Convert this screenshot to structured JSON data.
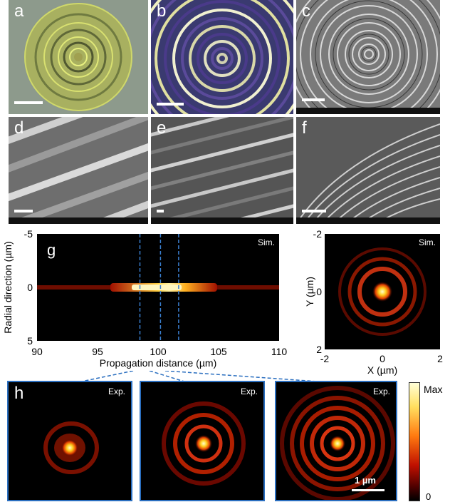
{
  "panels": {
    "a": {
      "label": "a"
    },
    "b": {
      "label": "b"
    },
    "c": {
      "label": "c"
    },
    "d": {
      "label": "d"
    },
    "e": {
      "label": "e"
    },
    "f": {
      "label": "f"
    },
    "g": {
      "label": "g",
      "tag": "Sim."
    },
    "sim_xy": {
      "tag": "Sim."
    },
    "h": {
      "label": "h"
    }
  },
  "chart_data": [
    {
      "type": "heatmap",
      "panel": "g",
      "xlabel": "Propagation distance (µm)",
      "ylabel": "Radial direction (µm)",
      "x_ticks": [
        "90",
        "95",
        "100",
        "105",
        "110"
      ],
      "y_ticks": [
        "-5",
        "0",
        "5"
      ],
      "xlim": [
        90,
        110
      ],
      "ylim": [
        -5,
        5
      ],
      "dashed_markers_x": [
        98.5,
        100.2,
        101.7
      ]
    },
    {
      "type": "heatmap",
      "panel": "sim-xy",
      "xlabel": "X (µm)",
      "ylabel": "Y (µm)",
      "x_ticks": [
        "-2",
        "0",
        "2"
      ],
      "y_ticks": [
        "-2",
        "0",
        "2"
      ],
      "xlim": [
        -2,
        2
      ],
      "ylim": [
        -2,
        2
      ]
    }
  ],
  "experiment": {
    "tags": [
      "Exp.",
      "Exp.",
      "Exp."
    ],
    "scale_label": "1 µm"
  },
  "colorbar": {
    "max_label": "Max",
    "min_label": "0"
  }
}
